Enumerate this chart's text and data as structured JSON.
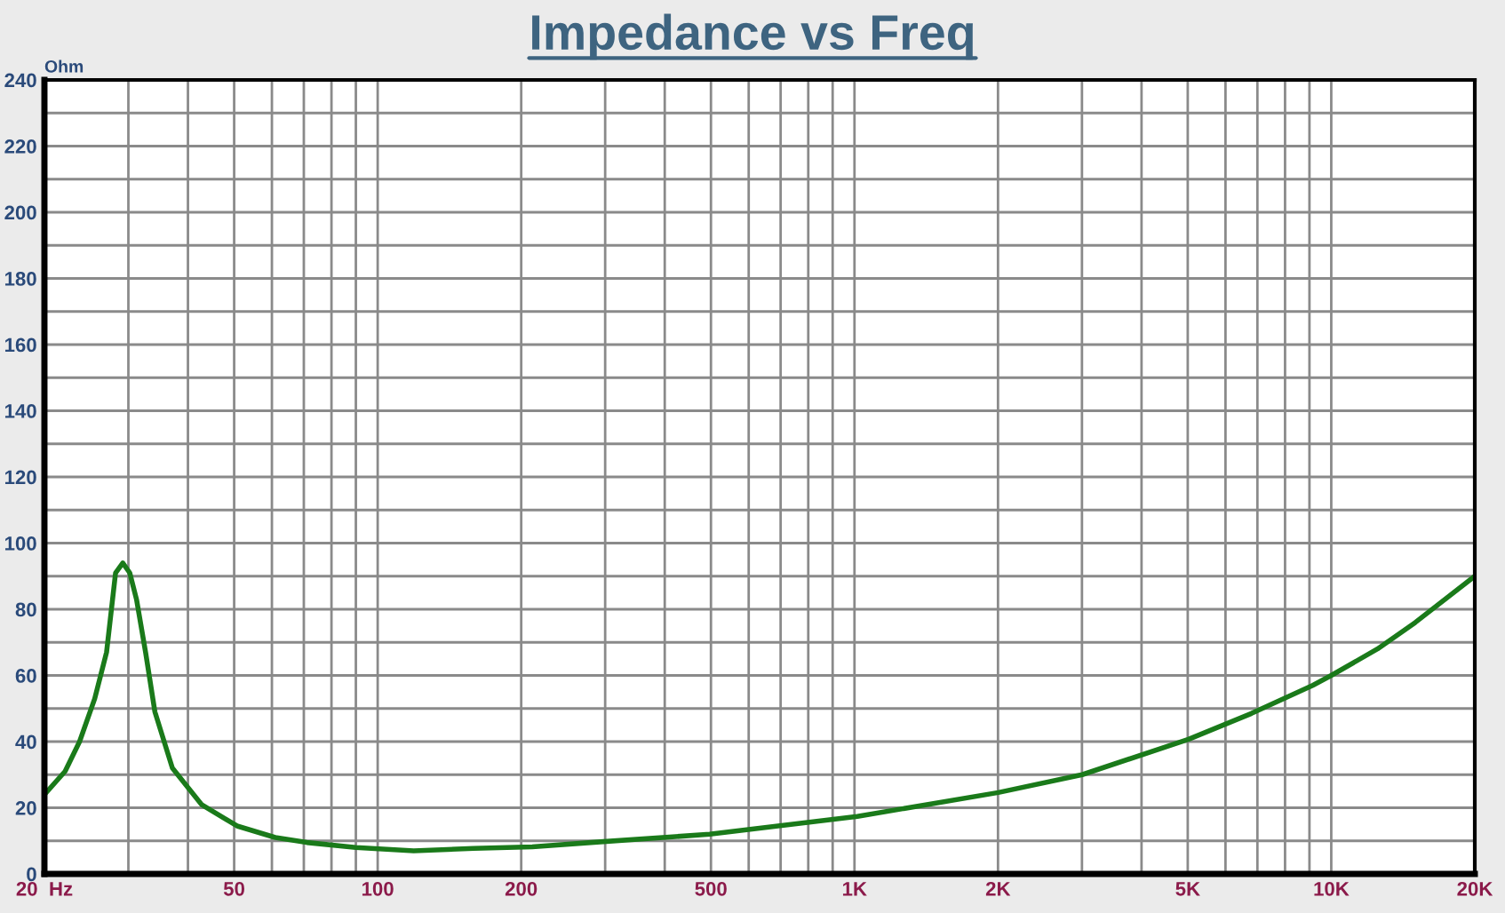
{
  "chart_data": {
    "type": "line",
    "title": "Impedance vs Freq",
    "ylabel": "Ohm",
    "log": "x",
    "grid": true,
    "xlim": [
      20,
      20000
    ],
    "ylim": [
      0,
      240
    ],
    "xticks": [
      {
        "value": 20,
        "label": "20  Hz"
      },
      {
        "value": 30,
        "label": null
      },
      {
        "value": 40,
        "label": null
      },
      50,
      {
        "value": 60,
        "label": null
      },
      {
        "value": 70,
        "label": null
      },
      {
        "value": 80,
        "label": null
      },
      {
        "value": 90,
        "label": null
      },
      100,
      200,
      {
        "value": 300,
        "label": null
      },
      {
        "value": 400,
        "label": null
      },
      500,
      {
        "value": 600,
        "label": null
      },
      {
        "value": 700,
        "label": null
      },
      {
        "value": 800,
        "label": null
      },
      {
        "value": 900,
        "label": null
      },
      {
        "value": 1000,
        "label": "1K"
      },
      {
        "value": 2000,
        "label": "2K"
      },
      {
        "value": 3000,
        "label": null
      },
      {
        "value": 4000,
        "label": null
      },
      {
        "value": 5000,
        "label": "5K"
      },
      {
        "value": 6000,
        "label": null
      },
      {
        "value": 7000,
        "label": null
      },
      {
        "value": 8000,
        "label": null
      },
      {
        "value": 9000,
        "label": null
      },
      {
        "value": 10000,
        "label": "10K"
      },
      {
        "value": 20000,
        "label": "20K"
      }
    ],
    "yticks": [
      0,
      {
        "value": 10,
        "label": null
      },
      20,
      {
        "value": 30,
        "label": null
      },
      40,
      {
        "value": 50,
        "label": null
      },
      60,
      {
        "value": 70,
        "label": null
      },
      80,
      {
        "value": 90,
        "label": null
      },
      100,
      {
        "value": 110,
        "label": null
      },
      120,
      {
        "value": 130,
        "label": null
      },
      140,
      {
        "value": 150,
        "label": null
      },
      160,
      {
        "value": 170,
        "label": null
      },
      180,
      {
        "value": 190,
        "label": null
      },
      200,
      {
        "value": 210,
        "label": null
      },
      220,
      {
        "value": 230,
        "label": null
      },
      240
    ],
    "marker": "none",
    "line_style": "solid",
    "series": [
      {
        "color": "#1a7a1a",
        "x": [
          20,
          22.1,
          23.7,
          25.5,
          27,
          28.2,
          29.2,
          30.2,
          31.2,
          32.6,
          34.1,
          37.1,
          42.7,
          50.7,
          61,
          71,
          90,
          119,
          159,
          211,
          293,
          497,
          1014,
          2002,
          3003,
          5020,
          6800,
          9140,
          10000,
          12500,
          15000,
          20000
        ],
        "values": [
          24,
          31,
          40,
          53,
          67,
          91,
          94,
          91,
          83,
          67,
          49,
          32,
          21,
          14.5,
          11,
          9.5,
          8,
          7,
          7.7,
          8.2,
          9.7,
          12,
          17.4,
          24.6,
          30,
          40.7,
          48.5,
          57,
          60,
          68,
          76,
          90
        ]
      }
    ]
  }
}
